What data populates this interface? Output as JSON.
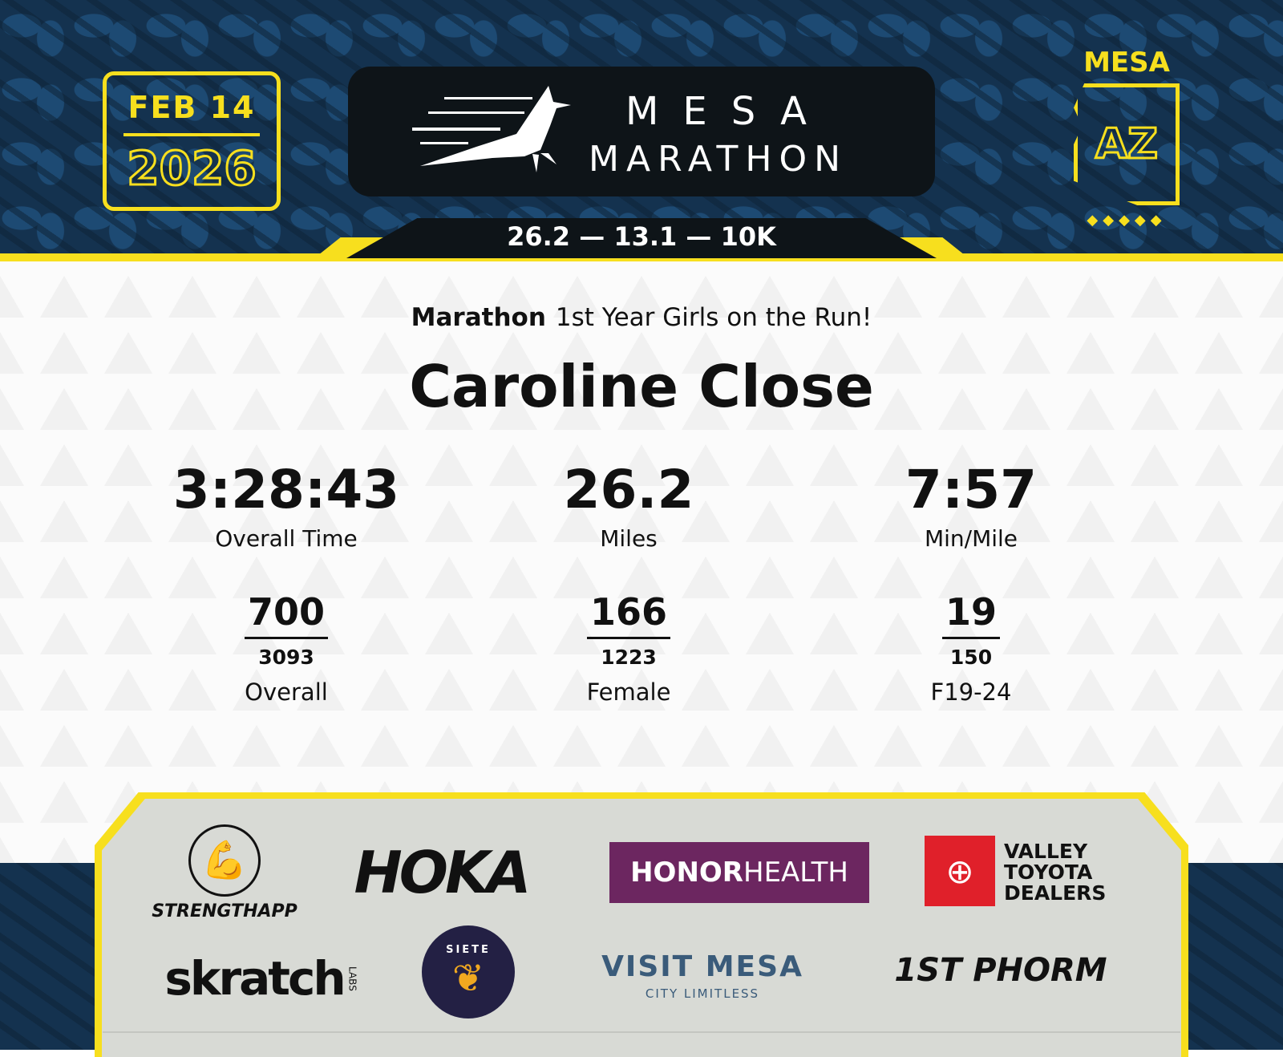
{
  "header": {
    "date": "FEB 14",
    "year": "2026",
    "title_line1": "MESA",
    "title_line2": "MARATHON",
    "distances": "26.2 — 13.1 — 10K",
    "state_city": "MESA",
    "state_abbr": "AZ",
    "dots": "◆◆◆◆◆",
    "accent": "#f7df1e",
    "background": "#14324f"
  },
  "result": {
    "race": "Marathon",
    "team": "1st Year Girls on the Run!",
    "name": "Caroline Close",
    "stats": [
      {
        "value": "3:28:43",
        "label": "Overall Time"
      },
      {
        "value": "26.2",
        "label": "Miles"
      },
      {
        "value": "7:57",
        "label": "Min/Mile"
      }
    ],
    "ranks": [
      {
        "place": "700",
        "total": "3093",
        "label": "Overall"
      },
      {
        "place": "166",
        "total": "1223",
        "label": "Female"
      },
      {
        "place": "19",
        "total": "150",
        "label": "F19-24"
      }
    ]
  },
  "sponsors": {
    "strengthapp": "STRENGTHAPP",
    "hoka": "HOKA",
    "honor": "HONOR",
    "health": "HEALTH",
    "toyota": "VALLEY TOYOTA DEALERS",
    "skratch": "skratch",
    "skratch_labs": "LABS",
    "siete": "SIETE",
    "visit_mesa": "VISIT MESA",
    "city_limitless": "CITY LIMITLESS",
    "phorm": "1ST PHORM"
  }
}
